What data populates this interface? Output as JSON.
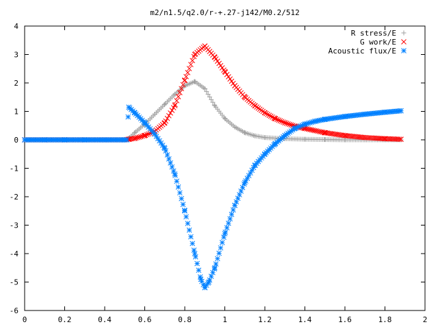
{
  "chart_data": {
    "type": "scatter",
    "title": "m2/n1.5/q2.0/r-+.27-j142/M0.2/512",
    "xlabel": "",
    "ylabel": "",
    "xlim": [
      0,
      2
    ],
    "ylim": [
      -6,
      4
    ],
    "x_ticks": [
      0,
      0.2,
      0.4,
      0.6,
      0.8,
      1,
      1.2,
      1.4,
      1.6,
      1.8,
      2
    ],
    "x_tick_labels": [
      "0",
      "0.2",
      "0.4",
      "0.6",
      "0.8",
      "1",
      "1.2",
      "1.4",
      "1.6",
      "1.8",
      "2"
    ],
    "y_ticks": [
      -6,
      -5,
      -4,
      -3,
      -2,
      -1,
      0,
      1,
      2,
      3,
      4
    ],
    "y_tick_labels": [
      "-6",
      "-5",
      "-4",
      "-3",
      "-2",
      "-1",
      "0",
      "1",
      "2",
      "3",
      "4"
    ],
    "grid": false,
    "legend_position": "top-right",
    "series": [
      {
        "name": "R stress/E",
        "marker": "+",
        "color": "#a0a0a0",
        "x": [
          0.0,
          0.1,
          0.2,
          0.3,
          0.4,
          0.5,
          0.52,
          0.55,
          0.6,
          0.65,
          0.7,
          0.75,
          0.8,
          0.85,
          0.9,
          0.95,
          1.0,
          1.05,
          1.1,
          1.15,
          1.2,
          1.3,
          1.4,
          1.5,
          1.6,
          1.7,
          1.8,
          1.88
        ],
        "y": [
          0,
          0,
          0,
          0,
          0,
          0,
          0.05,
          0.25,
          0.55,
          0.9,
          1.25,
          1.6,
          1.9,
          2.05,
          1.8,
          1.2,
          0.75,
          0.45,
          0.25,
          0.14,
          0.08,
          0.04,
          0.02,
          0.01,
          0.0,
          0.0,
          0.0,
          0.0
        ]
      },
      {
        "name": "G work/E",
        "marker": "x",
        "color": "#ff0000",
        "x": [
          0.0,
          0.1,
          0.2,
          0.3,
          0.4,
          0.5,
          0.52,
          0.55,
          0.6,
          0.65,
          0.7,
          0.75,
          0.8,
          0.85,
          0.9,
          0.95,
          1.0,
          1.05,
          1.1,
          1.15,
          1.2,
          1.25,
          1.3,
          1.35,
          1.4,
          1.5,
          1.6,
          1.7,
          1.8,
          1.88
        ],
        "y": [
          0,
          0,
          0,
          0,
          0,
          0,
          0.02,
          0.05,
          0.15,
          0.3,
          0.6,
          1.2,
          2.1,
          3.0,
          3.3,
          2.9,
          2.4,
          1.9,
          1.5,
          1.2,
          0.95,
          0.75,
          0.6,
          0.48,
          0.4,
          0.25,
          0.15,
          0.08,
          0.04,
          0.02
        ]
      },
      {
        "name": "Acoustic flux/E",
        "marker": "*",
        "color": "#0080ff",
        "x": [
          0.0,
          0.1,
          0.2,
          0.3,
          0.4,
          0.5,
          0.51,
          0.52,
          0.55,
          0.6,
          0.65,
          0.7,
          0.75,
          0.8,
          0.85,
          0.88,
          0.9,
          0.92,
          0.95,
          1.0,
          1.05,
          1.1,
          1.15,
          1.2,
          1.25,
          1.3,
          1.35,
          1.4,
          1.45,
          1.5,
          1.6,
          1.7,
          1.8,
          1.88
        ],
        "y": [
          0,
          0,
          0,
          0,
          0,
          0,
          0,
          1.15,
          0.95,
          0.6,
          0.2,
          -0.3,
          -1.2,
          -2.5,
          -4.0,
          -4.9,
          -5.2,
          -5.0,
          -4.5,
          -3.3,
          -2.3,
          -1.5,
          -0.9,
          -0.5,
          -0.15,
          0.15,
          0.4,
          0.55,
          0.65,
          0.72,
          0.82,
          0.9,
          0.97,
          1.02
        ]
      }
    ]
  }
}
